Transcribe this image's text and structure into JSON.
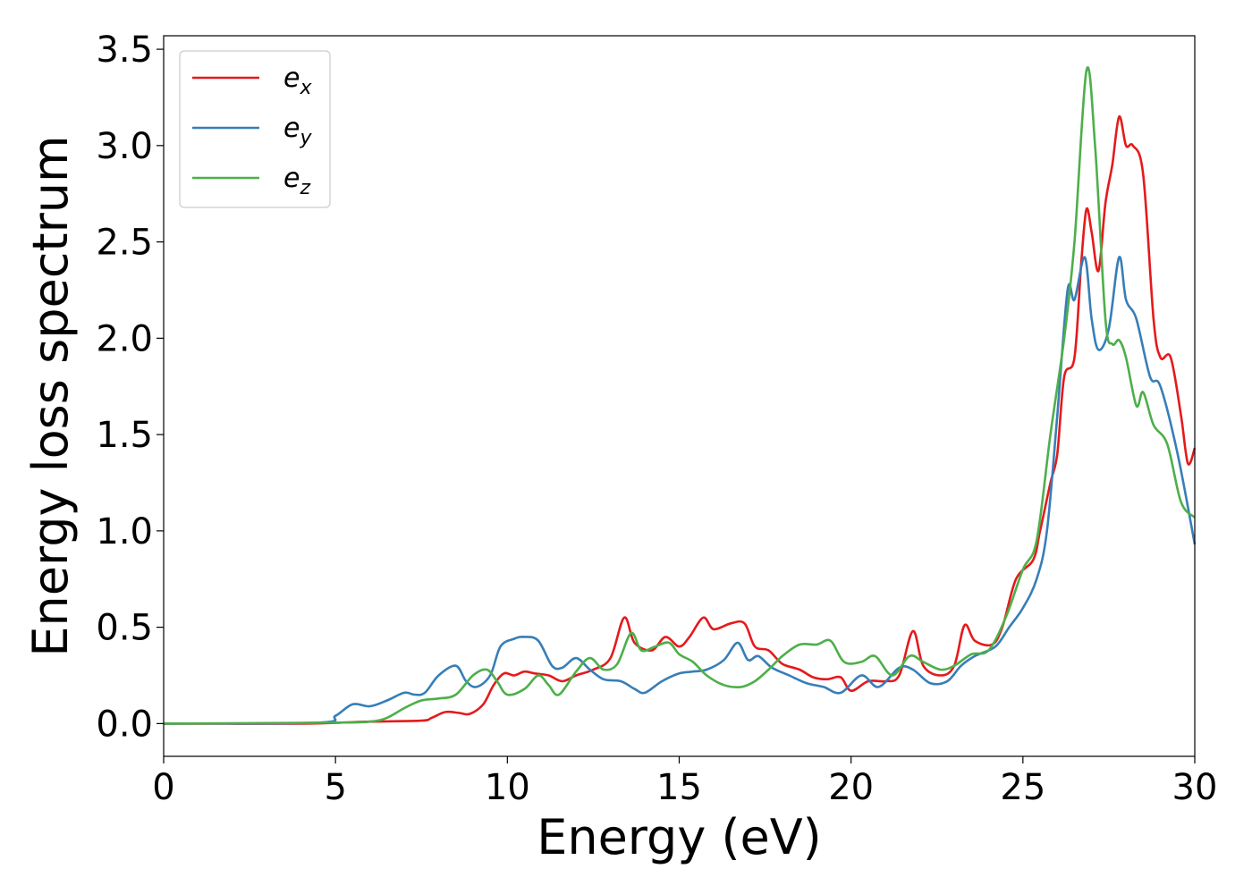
{
  "chart_data": {
    "type": "line",
    "xlabel": "Energy (eV)",
    "ylabel": "Energy loss spectrum",
    "xlim": [
      0,
      30
    ],
    "ylim": [
      -0.17,
      3.57
    ],
    "x_ticks": [
      "0",
      "5",
      "10",
      "15",
      "20",
      "25",
      "30"
    ],
    "y_ticks": [
      "0.0",
      "0.5",
      "1.0",
      "1.5",
      "2.0",
      "2.5",
      "3.0",
      "3.5"
    ],
    "grid": false,
    "legend_position": "top-left",
    "series": [
      {
        "name": "e",
        "subscript": "x",
        "color": "#e41a1c",
        "points": [
          [
            0,
            0
          ],
          [
            4,
            0
          ],
          [
            6,
            0.01
          ],
          [
            7.5,
            0.015
          ],
          [
            7.8,
            0.03
          ],
          [
            8.2,
            0.06
          ],
          [
            8.6,
            0.055
          ],
          [
            8.9,
            0.05
          ],
          [
            9.3,
            0.1
          ],
          [
            9.6,
            0.2
          ],
          [
            9.9,
            0.26
          ],
          [
            10.2,
            0.25
          ],
          [
            10.5,
            0.27
          ],
          [
            10.8,
            0.26
          ],
          [
            11.2,
            0.25
          ],
          [
            11.6,
            0.22
          ],
          [
            12,
            0.25
          ],
          [
            12.5,
            0.28
          ],
          [
            13,
            0.34
          ],
          [
            13.4,
            0.55
          ],
          [
            13.7,
            0.42
          ],
          [
            14.2,
            0.38
          ],
          [
            14.6,
            0.45
          ],
          [
            15,
            0.4
          ],
          [
            15.3,
            0.45
          ],
          [
            15.7,
            0.55
          ],
          [
            16,
            0.49
          ],
          [
            16.5,
            0.52
          ],
          [
            16.9,
            0.52
          ],
          [
            17.2,
            0.4
          ],
          [
            17.6,
            0.38
          ],
          [
            18,
            0.31
          ],
          [
            18.5,
            0.28
          ],
          [
            18.9,
            0.24
          ],
          [
            19.3,
            0.23
          ],
          [
            19.7,
            0.24
          ],
          [
            20,
            0.17
          ],
          [
            20.5,
            0.22
          ],
          [
            21,
            0.22
          ],
          [
            21.4,
            0.25
          ],
          [
            21.8,
            0.48
          ],
          [
            22.1,
            0.3
          ],
          [
            22.6,
            0.25
          ],
          [
            23,
            0.3
          ],
          [
            23.3,
            0.51
          ],
          [
            23.6,
            0.43
          ],
          [
            24.1,
            0.41
          ],
          [
            24.4,
            0.5
          ],
          [
            24.8,
            0.75
          ],
          [
            25.3,
            0.85
          ],
          [
            25.5,
            1.0
          ],
          [
            25.8,
            1.25
          ],
          [
            26,
            1.4
          ],
          [
            26.2,
            1.8
          ],
          [
            26.5,
            1.9
          ],
          [
            26.7,
            2.4
          ],
          [
            26.85,
            2.67
          ],
          [
            27,
            2.55
          ],
          [
            27.2,
            2.35
          ],
          [
            27.4,
            2.7
          ],
          [
            27.6,
            2.9
          ],
          [
            27.8,
            3.15
          ],
          [
            28,
            3.0
          ],
          [
            28.2,
            3.0
          ],
          [
            28.5,
            2.85
          ],
          [
            28.8,
            2.1
          ],
          [
            29,
            1.9
          ],
          [
            29.3,
            1.9
          ],
          [
            29.6,
            1.6
          ],
          [
            29.8,
            1.35
          ],
          [
            30,
            1.43
          ]
        ]
      },
      {
        "name": "e",
        "subscript": "y",
        "color": "#377eb8",
        "points": [
          [
            0,
            0
          ],
          [
            4.5,
            0.005
          ],
          [
            5,
            0.04
          ],
          [
            5.5,
            0.1
          ],
          [
            6,
            0.09
          ],
          [
            6.5,
            0.12
          ],
          [
            7,
            0.16
          ],
          [
            7.3,
            0.15
          ],
          [
            7.6,
            0.16
          ],
          [
            8,
            0.25
          ],
          [
            8.5,
            0.3
          ],
          [
            8.8,
            0.22
          ],
          [
            9.1,
            0.19
          ],
          [
            9.5,
            0.25
          ],
          [
            9.8,
            0.4
          ],
          [
            10.2,
            0.44
          ],
          [
            10.5,
            0.45
          ],
          [
            10.9,
            0.43
          ],
          [
            11.3,
            0.3
          ],
          [
            11.6,
            0.29
          ],
          [
            12,
            0.34
          ],
          [
            12.4,
            0.28
          ],
          [
            12.8,
            0.23
          ],
          [
            13.3,
            0.22
          ],
          [
            13.7,
            0.18
          ],
          [
            14,
            0.16
          ],
          [
            14.5,
            0.22
          ],
          [
            15,
            0.26
          ],
          [
            15.4,
            0.27
          ],
          [
            15.8,
            0.28
          ],
          [
            16.3,
            0.33
          ],
          [
            16.7,
            0.42
          ],
          [
            17,
            0.33
          ],
          [
            17.3,
            0.35
          ],
          [
            17.7,
            0.29
          ],
          [
            18.2,
            0.25
          ],
          [
            18.7,
            0.21
          ],
          [
            19.2,
            0.19
          ],
          [
            19.7,
            0.16
          ],
          [
            20.3,
            0.25
          ],
          [
            20.8,
            0.19
          ],
          [
            21.4,
            0.29
          ],
          [
            21.8,
            0.28
          ],
          [
            22.3,
            0.21
          ],
          [
            22.8,
            0.22
          ],
          [
            23.2,
            0.3
          ],
          [
            23.6,
            0.35
          ],
          [
            24.2,
            0.4
          ],
          [
            24.6,
            0.5
          ],
          [
            25,
            0.6
          ],
          [
            25.4,
            0.75
          ],
          [
            25.7,
            1.0
          ],
          [
            26,
            1.6
          ],
          [
            26.3,
            2.25
          ],
          [
            26.5,
            2.2
          ],
          [
            26.8,
            2.42
          ],
          [
            27,
            2.1
          ],
          [
            27.2,
            1.94
          ],
          [
            27.5,
            2.05
          ],
          [
            27.8,
            2.42
          ],
          [
            28,
            2.2
          ],
          [
            28.3,
            2.1
          ],
          [
            28.7,
            1.8
          ],
          [
            29,
            1.75
          ],
          [
            29.5,
            1.4
          ],
          [
            30,
            0.93
          ]
        ]
      },
      {
        "name": "e",
        "subscript": "z",
        "color": "#4daf4a",
        "points": [
          [
            0,
            0
          ],
          [
            5,
            0.005
          ],
          [
            6,
            0.01
          ],
          [
            6.5,
            0.03
          ],
          [
            7,
            0.08
          ],
          [
            7.5,
            0.12
          ],
          [
            8,
            0.13
          ],
          [
            8.5,
            0.15
          ],
          [
            9,
            0.25
          ],
          [
            9.4,
            0.28
          ],
          [
            9.7,
            0.22
          ],
          [
            10,
            0.15
          ],
          [
            10.5,
            0.18
          ],
          [
            10.9,
            0.25
          ],
          [
            11.2,
            0.2
          ],
          [
            11.5,
            0.15
          ],
          [
            12,
            0.27
          ],
          [
            12.4,
            0.34
          ],
          [
            12.8,
            0.28
          ],
          [
            13.2,
            0.31
          ],
          [
            13.6,
            0.47
          ],
          [
            13.9,
            0.38
          ],
          [
            14.3,
            0.4
          ],
          [
            14.7,
            0.42
          ],
          [
            15,
            0.36
          ],
          [
            15.4,
            0.32
          ],
          [
            15.8,
            0.25
          ],
          [
            16.3,
            0.2
          ],
          [
            16.8,
            0.19
          ],
          [
            17.2,
            0.22
          ],
          [
            17.6,
            0.28
          ],
          [
            18,
            0.35
          ],
          [
            18.5,
            0.41
          ],
          [
            19,
            0.41
          ],
          [
            19.4,
            0.43
          ],
          [
            19.8,
            0.32
          ],
          [
            20.3,
            0.32
          ],
          [
            20.7,
            0.35
          ],
          [
            21.2,
            0.25
          ],
          [
            21.7,
            0.35
          ],
          [
            22.1,
            0.32
          ],
          [
            22.6,
            0.28
          ],
          [
            23,
            0.3
          ],
          [
            23.5,
            0.36
          ],
          [
            24,
            0.38
          ],
          [
            24.5,
            0.55
          ],
          [
            25,
            0.8
          ],
          [
            25.4,
            0.95
          ],
          [
            25.8,
            1.5
          ],
          [
            26.2,
            2.0
          ],
          [
            26.5,
            2.5
          ],
          [
            26.85,
            3.39
          ],
          [
            27.1,
            3.0
          ],
          [
            27.4,
            2.1
          ],
          [
            27.6,
            1.97
          ],
          [
            27.8,
            1.99
          ],
          [
            28,
            1.9
          ],
          [
            28.3,
            1.65
          ],
          [
            28.5,
            1.72
          ],
          [
            28.8,
            1.55
          ],
          [
            29.2,
            1.45
          ],
          [
            29.6,
            1.15
          ],
          [
            30,
            1.07
          ]
        ]
      }
    ]
  }
}
